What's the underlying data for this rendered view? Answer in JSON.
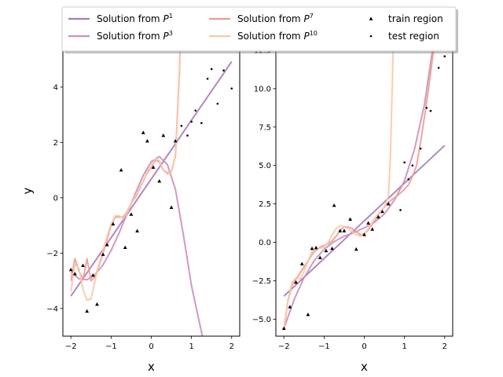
{
  "chart_data": [
    {
      "type": "line",
      "xlabel": "x",
      "ylabel": "y",
      "xlim": [
        -2.2,
        2.2
      ],
      "ylim": [
        -5.0,
        5.5
      ],
      "xticks": [
        -2,
        -1,
        0,
        1,
        2
      ],
      "xtick_labels": [
        "−2",
        "−1",
        "0",
        "1",
        "2"
      ],
      "yticks": [
        -4,
        -2,
        0,
        2,
        4
      ],
      "ytick_labels": [
        "−4",
        "−2",
        "0",
        "2",
        "4"
      ],
      "series": [
        {
          "name": "Solution from P^1",
          "color": "#a87bb8",
          "x": [
            -2.0,
            -1.5,
            -1.0,
            -0.5,
            0.0,
            0.5,
            1.0,
            1.5,
            2.0
          ],
          "y": [
            -3.55,
            -2.5,
            -1.44,
            -0.38,
            0.68,
            1.74,
            2.8,
            3.86,
            4.92
          ]
        },
        {
          "name": "Solution from P^3",
          "color": "#c98fbf",
          "x": [
            -2.0,
            -1.8,
            -1.6,
            -1.4,
            -1.2,
            -1.0,
            -0.8,
            -0.6,
            -0.4,
            -0.2,
            0.0,
            0.2,
            0.4,
            0.6,
            0.8,
            1.0,
            1.2,
            1.3,
            1.35
          ],
          "y": [
            -2.67,
            -2.93,
            -2.96,
            -2.78,
            -2.42,
            -1.9,
            -1.27,
            -0.57,
            0.15,
            0.81,
            1.3,
            1.49,
            1.2,
            0.31,
            -1.35,
            -3.17,
            -4.53,
            -5.2,
            -5.6
          ]
        },
        {
          "name": "Solution from P^7",
          "color": "#ef9b91",
          "x": [
            -2.0,
            -1.9,
            -1.8,
            -1.7,
            -1.6,
            -1.5,
            -1.4,
            -1.3,
            -1.2,
            -1.1,
            -1.0,
            -0.9,
            -0.8,
            -0.7,
            -0.6,
            -0.5,
            -0.4,
            -0.3,
            -0.2,
            -0.1,
            0.0,
            0.1,
            0.2,
            0.3,
            0.4,
            0.5,
            0.6,
            0.7,
            0.72
          ],
          "y": [
            -3.0,
            -2.2,
            -2.65,
            -2.95,
            -2.2,
            -3.0,
            -2.85,
            -2.45,
            -2.0,
            -1.5,
            -1.0,
            -0.7,
            -0.7,
            -0.7,
            -0.5,
            -0.2,
            0.0,
            0.3,
            0.6,
            0.9,
            1.1,
            1.35,
            1.3,
            1.0,
            0.9,
            0.95,
            1.5,
            4.5,
            5.6
          ]
        },
        {
          "name": "Solution from P^10",
          "color": "#f8c8a8",
          "x": [
            -2.0,
            -1.9,
            -1.8,
            -1.7,
            -1.6,
            -1.5,
            -1.4,
            -1.3,
            -1.2,
            -1.1,
            -1.0,
            -0.9,
            -0.8,
            -0.7,
            -0.6,
            -0.5,
            -0.4,
            -0.3,
            -0.2,
            -0.1,
            0.0,
            0.1,
            0.2,
            0.3,
            0.4,
            0.5,
            0.6,
            0.7,
            0.72
          ],
          "y": [
            -3.4,
            -2.4,
            -2.55,
            -3.3,
            -3.7,
            -3.65,
            -3.0,
            -2.4,
            -1.9,
            -1.4,
            -0.95,
            -0.65,
            -0.65,
            -0.75,
            -0.55,
            -0.2,
            0.05,
            0.35,
            0.6,
            0.95,
            1.15,
            1.4,
            1.35,
            1.0,
            0.85,
            0.95,
            1.5,
            4.5,
            5.6
          ]
        }
      ],
      "train_points": {
        "name": "train region",
        "x": [
          -2.0,
          -1.9,
          -1.7,
          -1.6,
          -1.45,
          -1.35,
          -1.2,
          -1.1,
          -0.95,
          -0.75,
          -0.65,
          -0.5,
          -0.35,
          -0.2,
          -0.1,
          0.05,
          0.2,
          0.3,
          0.5,
          0.6
        ],
        "y": [
          -2.6,
          -2.75,
          -2.45,
          -4.1,
          -2.8,
          -3.85,
          -2.05,
          -1.7,
          -0.95,
          1.0,
          -1.8,
          -0.6,
          -1.2,
          2.35,
          2.05,
          1.1,
          0.6,
          2.25,
          -0.35,
          2.05
        ]
      },
      "test_points": {
        "name": "test region",
        "x": [
          0.75,
          0.9,
          1.0,
          1.1,
          1.25,
          1.4,
          1.5,
          1.65,
          1.8,
          2.0
        ],
        "y": [
          2.6,
          2.25,
          2.75,
          3.15,
          2.7,
          4.3,
          4.65,
          3.4,
          4.6,
          3.95
        ]
      }
    },
    {
      "type": "line",
      "xlabel": "x",
      "ylabel": "",
      "xlim": [
        -2.2,
        2.2
      ],
      "ylim": [
        -6.1,
        12.8
      ],
      "xticks": [
        -2,
        -1,
        0,
        1,
        2
      ],
      "xtick_labels": [
        "−2",
        "−1",
        "0",
        "1",
        "2"
      ],
      "yticks": [
        -5.0,
        -2.5,
        0.0,
        2.5,
        5.0,
        7.5,
        10.0,
        12.5
      ],
      "ytick_labels": [
        "−5.0",
        "−2.5",
        "0.0",
        "2.5",
        "5.0",
        "7.5",
        "10.0",
        "12.5"
      ],
      "series": [
        {
          "name": "Solution from P^1",
          "color": "#a87bb8",
          "x": [
            -2.0,
            -1.0,
            0.0,
            1.0,
            2.0
          ],
          "y": [
            -3.5,
            -1.05,
            1.4,
            3.85,
            6.3
          ]
        },
        {
          "name": "Solution from P^3",
          "color": "#c98fbf",
          "x": [
            -2.0,
            -1.75,
            -1.5,
            -1.25,
            -1.0,
            -0.75,
            -0.5,
            -0.25,
            0.0,
            0.25,
            0.5,
            0.75,
            1.0,
            1.25,
            1.5,
            1.6,
            1.72
          ],
          "y": [
            -5.6,
            -3.75,
            -2.3,
            -1.2,
            -0.45,
            0.05,
            0.4,
            0.65,
            0.95,
            1.3,
            1.85,
            2.75,
            4.0,
            6.05,
            9.0,
            10.8,
            12.9
          ]
        },
        {
          "name": "Solution from P^7",
          "color": "#ef9b91",
          "x": [
            -2.0,
            -1.9,
            -1.8,
            -1.7,
            -1.6,
            -1.5,
            -1.4,
            -1.3,
            -1.2,
            -1.1,
            -1.0,
            -0.9,
            -0.8,
            -0.7,
            -0.6,
            -0.5,
            -0.4,
            -0.3,
            -0.2,
            -0.1,
            0.0,
            0.1,
            0.2,
            0.3,
            0.4,
            0.5,
            0.6,
            0.7,
            0.8,
            0.9,
            1.0,
            1.1,
            1.2,
            1.3,
            1.4,
            1.5,
            1.6,
            1.7,
            1.75
          ],
          "y": [
            -5.7,
            -3.8,
            -2.8,
            -2.4,
            -2.0,
            -1.6,
            -1.2,
            -0.8,
            -0.5,
            -0.3,
            -0.2,
            -0.1,
            0.1,
            0.4,
            0.8,
            1.0,
            1.0,
            0.9,
            0.7,
            0.5,
            0.55,
            0.8,
            1.2,
            1.6,
            2.0,
            2.3,
            2.6,
            2.8,
            3.0,
            3.2,
            3.45,
            3.75,
            4.3,
            5.0,
            6.5,
            8.2,
            10.0,
            12.0,
            12.9
          ]
        },
        {
          "name": "Solution from P^10",
          "color": "#f8c8a8",
          "x": [
            -2.0,
            -1.9,
            -1.8,
            -1.7,
            -1.6,
            -1.5,
            -1.4,
            -1.3,
            -1.2,
            -1.1,
            -1.0,
            -0.9,
            -0.8,
            -0.7,
            -0.6,
            -0.5,
            -0.4,
            -0.3,
            -0.2,
            -0.1,
            0.0,
            0.1,
            0.2,
            0.3,
            0.4,
            0.5,
            0.6,
            0.65,
            0.7,
            0.72
          ],
          "y": [
            -5.6,
            -3.8,
            -2.6,
            -2.3,
            -2.4,
            -1.9,
            -1.2,
            -0.6,
            -0.4,
            -0.4,
            -0.3,
            0.0,
            0.5,
            0.9,
            1.1,
            1.0,
            0.9,
            0.7,
            0.5,
            0.4,
            0.55,
            0.9,
            1.3,
            1.7,
            2.0,
            2.3,
            3.0,
            5.5,
            10.5,
            12.9
          ]
        }
      ],
      "train_points": {
        "name": "train region",
        "x": [
          -2.0,
          -1.85,
          -1.7,
          -1.55,
          -1.4,
          -1.3,
          -1.2,
          -1.1,
          -0.95,
          -0.8,
          -0.75,
          -0.6,
          -0.5,
          -0.35,
          -0.2,
          0.0,
          0.1,
          0.2,
          0.35,
          0.45,
          0.6
        ],
        "y": [
          -5.6,
          -4.2,
          -2.6,
          -1.4,
          -4.7,
          -0.4,
          -0.35,
          -1.0,
          -0.55,
          -0.4,
          2.4,
          0.75,
          0.75,
          1.5,
          -0.45,
          0.5,
          1.25,
          0.85,
          1.65,
          2.0,
          2.5
        ]
      },
      "test_points": {
        "name": "test region",
        "x": [
          0.9,
          1.0,
          1.1,
          1.2,
          1.4,
          1.55,
          1.65,
          1.85,
          2.0
        ],
        "y": [
          2.1,
          5.2,
          4.1,
          5.0,
          6.1,
          8.75,
          8.55,
          11.35,
          12.1
        ]
      }
    }
  ],
  "legend": {
    "entries": [
      {
        "kind": "line",
        "label": "Solution from ",
        "sup": "1",
        "color": "#a87bb8"
      },
      {
        "kind": "line",
        "label": "Solution from ",
        "sup": "3",
        "color": "#c98fbf"
      },
      {
        "kind": "line",
        "label": "Solution from ",
        "sup": "7",
        "color": "#ef9b91"
      },
      {
        "kind": "line",
        "label": "Solution from ",
        "sup": "10",
        "color": "#f8c8a8"
      },
      {
        "kind": "marker-triangle",
        "label": "train region",
        "sup": "",
        "color": "#000000"
      },
      {
        "kind": "marker-dot",
        "label": "test region",
        "sup": "",
        "color": "#000000"
      }
    ]
  }
}
